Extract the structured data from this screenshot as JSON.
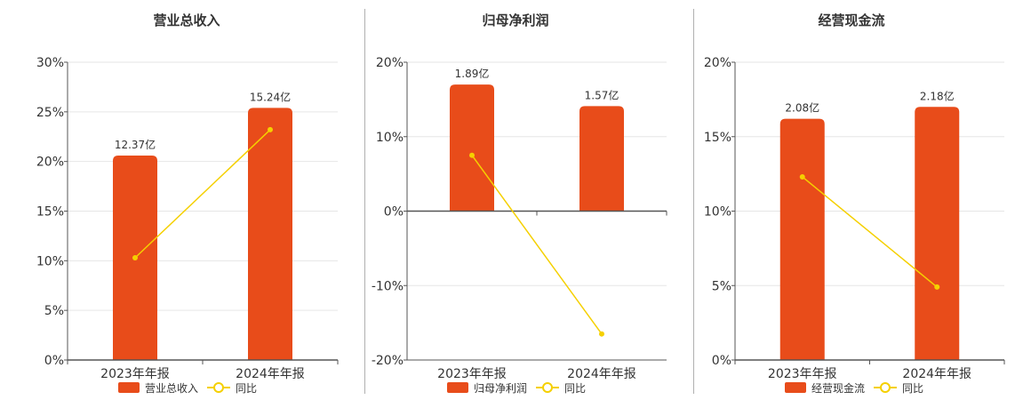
{
  "colors": {
    "bar": "#e84c1a",
    "line": "#f5d000",
    "axis": "#555555",
    "grid": "#e6e6e6",
    "text": "#333333"
  },
  "chart_data": [
    {
      "type": "bar",
      "title": "营业总收入",
      "categories": [
        "2023年年报",
        "2024年年报"
      ],
      "ylim": [
        0,
        30
      ],
      "yticks": [
        0,
        5,
        10,
        15,
        20,
        25,
        30
      ],
      "ytick_labels": [
        "0%",
        "5%",
        "10%",
        "15%",
        "20%",
        "25%",
        "30%"
      ],
      "series": [
        {
          "name": "营业总收入",
          "kind": "bar",
          "values": [
            20.6,
            25.4
          ],
          "data_labels": [
            "12.37亿",
            "15.24亿"
          ]
        },
        {
          "name": "同比",
          "kind": "line",
          "values": [
            10.3,
            23.2
          ]
        }
      ],
      "legend": "bottom-center",
      "grid": true
    },
    {
      "type": "bar",
      "title": "归母净利润",
      "categories": [
        "2023年年报",
        "2024年年报"
      ],
      "ylim": [
        -20,
        20
      ],
      "yticks": [
        -20,
        -10,
        0,
        10,
        20
      ],
      "ytick_labels": [
        "-20%",
        "-10%",
        "0%",
        "10%",
        "20%"
      ],
      "series": [
        {
          "name": "归母净利润",
          "kind": "bar",
          "values": [
            17.0,
            14.1
          ],
          "data_labels": [
            "1.89亿",
            "1.57亿"
          ]
        },
        {
          "name": "同比",
          "kind": "line",
          "values": [
            7.5,
            -16.5
          ]
        }
      ],
      "legend": "bottom-center",
      "grid": true
    },
    {
      "type": "bar",
      "title": "经营现金流",
      "categories": [
        "2023年年报",
        "2024年年报"
      ],
      "ylim": [
        0,
        20
      ],
      "yticks": [
        0,
        5,
        10,
        15,
        20
      ],
      "ytick_labels": [
        "0%",
        "5%",
        "10%",
        "15%",
        "20%"
      ],
      "series": [
        {
          "name": "经营现金流",
          "kind": "bar",
          "values": [
            16.2,
            17.0
          ],
          "data_labels": [
            "2.08亿",
            "2.18亿"
          ]
        },
        {
          "name": "同比",
          "kind": "line",
          "values": [
            12.3,
            4.9
          ]
        }
      ],
      "legend": "bottom-center",
      "grid": true
    }
  ]
}
